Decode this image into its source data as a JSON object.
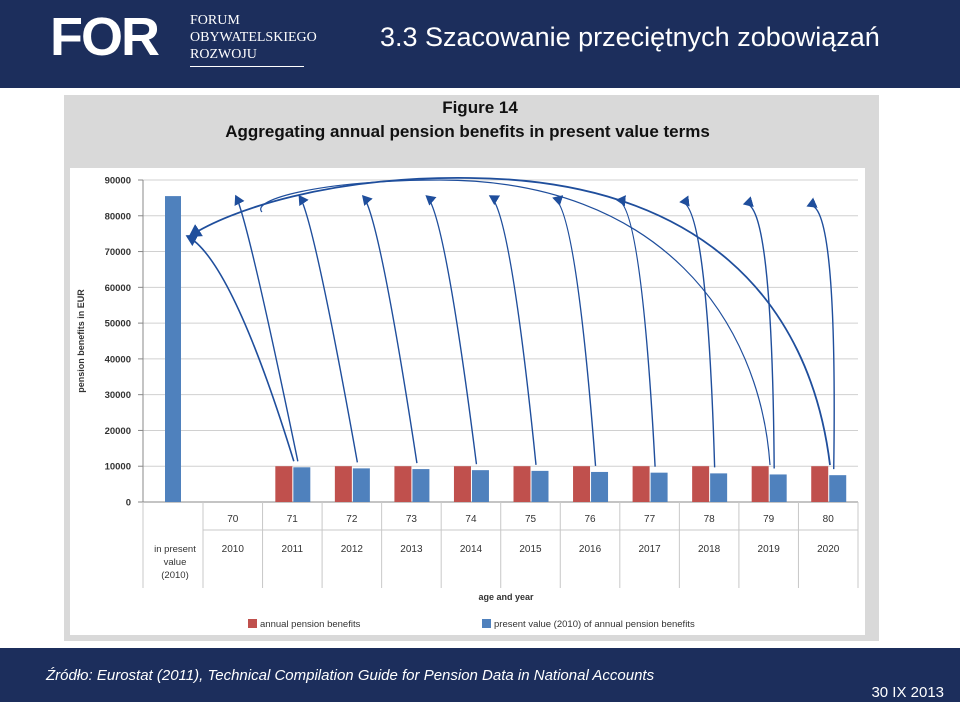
{
  "header": {
    "logo_mark": "FOR",
    "logo_line1": "FORUM",
    "logo_line2": "OBYWATELSKIEGO",
    "logo_line3": "ROZWOJU",
    "title": "3.3 Szacowanie przeciętnych zobowiązań"
  },
  "figure": {
    "label": "Figure 14",
    "title": "Aggregating annual pension benefits in present value terms"
  },
  "colors": {
    "header_bg": "#1c2e5c",
    "annual": "#c0504d",
    "present": "#4f81bd",
    "arrow": "#1f4e9c"
  },
  "chart_data": {
    "type": "bar",
    "ylabel": "pension benefits in EUR",
    "xlabel": "age and year",
    "ylim": [
      0,
      90000
    ],
    "yticks": [
      "0",
      "10000",
      "20000",
      "30000",
      "40000",
      "50000",
      "60000",
      "70000",
      "80000",
      "90000"
    ],
    "first_category": {
      "label_lines": [
        "in present",
        "value",
        "(2010)"
      ],
      "value": 85500
    },
    "ages": [
      "70",
      "71",
      "72",
      "73",
      "74",
      "75",
      "76",
      "77",
      "78",
      "79",
      "80"
    ],
    "years": [
      "2010",
      "2011",
      "2012",
      "2013",
      "2014",
      "2015",
      "2016",
      "2017",
      "2018",
      "2019",
      "2020"
    ],
    "series": [
      {
        "name": "annual pension benefits",
        "values": [
          null,
          10000,
          10000,
          10000,
          10000,
          10000,
          10000,
          10000,
          10000,
          10000,
          10000
        ]
      },
      {
        "name": "present value (2010) of annual pension benefits",
        "values": [
          null,
          9700,
          9400,
          9200,
          8900,
          8700,
          8400,
          8200,
          8000,
          7700,
          7500
        ]
      }
    ],
    "legend": "bottom",
    "grid": true
  },
  "footer": {
    "source": "Źródło: Eurostat (2011), Technical Compilation Guide for Pension Data in National Accounts",
    "date": "30 IX 2013"
  }
}
